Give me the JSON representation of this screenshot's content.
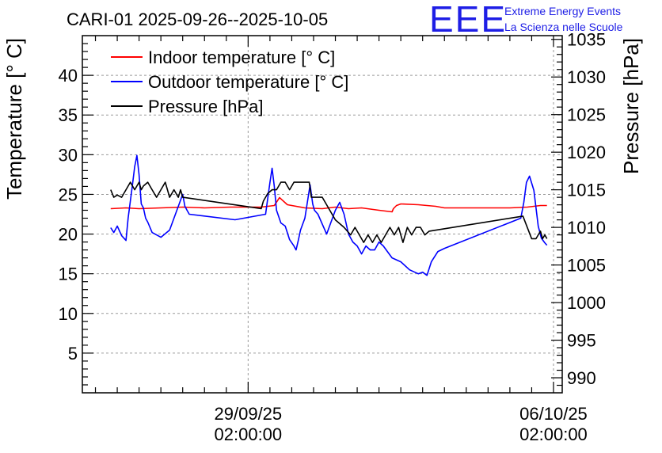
{
  "chart_data": {
    "type": "line",
    "title": "CARI-01 2025-09-26--2025-10-05",
    "logo": {
      "text": "EEE",
      "line1": "Extreme Energy Events",
      "line2": "La Scienza nelle Scuole"
    },
    "ylabel": "Temperature [° C]",
    "y2label": "Pressure [hPa]",
    "ylim": [
      0,
      45
    ],
    "y2lim": [
      988,
      1035.5
    ],
    "xlim": [
      -3.8,
      7.2
    ],
    "x_unit": "days since 29/09/25 02:00:00",
    "yticks": [
      5,
      10,
      15,
      20,
      25,
      30,
      35,
      40
    ],
    "y2ticks": [
      990,
      995,
      1000,
      1005,
      1010,
      1015,
      1020,
      1025,
      1030,
      1035
    ],
    "x_ticks": [
      {
        "x": 0,
        "date": "29/09/25",
        "time": "02:00:00"
      },
      {
        "x": 7,
        "date": "06/10/25",
        "time": "02:00:00"
      }
    ],
    "grid": true,
    "legend_position": "top-left",
    "series": [
      {
        "name": "Indoor temperature [° C]",
        "color": "#ff0000",
        "axis": "left",
        "x": [
          -3.15,
          -2.8,
          -2.5,
          -2.0,
          -1.5,
          -1.0,
          -0.4,
          0.3,
          0.6,
          0.72,
          0.9,
          1.3,
          1.7,
          2.0,
          2.3,
          2.6,
          3.0,
          3.3,
          3.33,
          3.4,
          3.5,
          3.9,
          4.3,
          4.5,
          5.0,
          5.5,
          6.0,
          6.4,
          6.7,
          6.85
        ],
        "y": [
          23.2,
          23.3,
          23.2,
          23.3,
          23.4,
          23.3,
          23.4,
          23.4,
          23.6,
          24.6,
          23.7,
          23.3,
          23.2,
          23.4,
          23.2,
          23.3,
          23.0,
          22.8,
          23.2,
          23.6,
          23.8,
          23.7,
          23.5,
          23.3,
          23.3,
          23.3,
          23.3,
          23.4,
          23.6,
          23.6
        ]
      },
      {
        "name": "Outdoor temperature [° C]",
        "color": "#0000ff",
        "axis": "left",
        "x": [
          -3.15,
          -3.08,
          -3.0,
          -2.9,
          -2.8,
          -2.75,
          -2.65,
          -2.6,
          -2.55,
          -2.5,
          -2.45,
          -2.4,
          -2.35,
          -2.3,
          -2.2,
          -2.0,
          -1.8,
          -1.6,
          -1.5,
          -1.45,
          -1.4,
          -1.35,
          -0.3,
          0.4,
          0.45,
          0.5,
          0.55,
          0.6,
          0.65,
          0.75,
          0.85,
          0.95,
          1.05,
          1.1,
          1.15,
          1.2,
          1.3,
          1.42,
          1.48,
          1.52,
          1.6,
          1.8,
          1.9,
          2.0,
          2.1,
          2.2,
          2.3,
          2.4,
          2.5,
          2.6,
          2.7,
          2.8,
          2.9,
          3.0,
          3.1,
          3.3,
          3.5,
          3.7,
          3.9,
          4.0,
          4.1,
          4.2,
          4.35,
          4.5,
          6.25,
          6.32,
          6.38,
          6.45,
          6.55,
          6.65,
          6.72,
          6.8,
          6.85
        ],
        "y": [
          20.8,
          20.2,
          21.0,
          19.8,
          19.2,
          22.0,
          26.3,
          28.5,
          29.9,
          27.5,
          23.8,
          23.3,
          22.0,
          21.5,
          20.2,
          19.6,
          20.5,
          23.5,
          25.0,
          23.5,
          23.0,
          22.5,
          21.8,
          22.5,
          24.5,
          26.5,
          28.3,
          26.0,
          23.0,
          21.4,
          21.0,
          19.3,
          18.5,
          18.0,
          19.2,
          20.5,
          22.0,
          26.2,
          23.8,
          23.0,
          22.5,
          20.0,
          21.5,
          23.0,
          24.0,
          22.5,
          20.0,
          19.0,
          18.5,
          17.5,
          18.5,
          18.0,
          18.0,
          19.0,
          18.5,
          17.0,
          16.5,
          15.5,
          15.0,
          15.2,
          14.8,
          16.5,
          17.8,
          18.2,
          22.0,
          24.0,
          26.5,
          27.3,
          25.5,
          21.0,
          19.5,
          18.9,
          18.6
        ]
      },
      {
        "name": "Pressure [hPa]",
        "color": "#000000",
        "axis": "right",
        "x": [
          -3.15,
          -3.08,
          -3.0,
          -2.9,
          -2.8,
          -2.7,
          -2.6,
          -2.5,
          -2.45,
          -2.4,
          -2.3,
          -2.2,
          -2.1,
          -2.0,
          -1.9,
          -1.8,
          -1.7,
          -1.6,
          -1.55,
          -1.5,
          0.3,
          0.35,
          0.45,
          0.55,
          0.65,
          0.75,
          0.85,
          0.95,
          1.05,
          1.15,
          1.25,
          1.4,
          1.45,
          1.55,
          1.7,
          1.8,
          2.0,
          2.2,
          2.35,
          2.45,
          2.55,
          2.65,
          2.75,
          2.85,
          2.95,
          3.05,
          3.15,
          3.25,
          3.35,
          3.45,
          3.55,
          3.65,
          3.75,
          3.85,
          3.95,
          4.05,
          4.15,
          6.3,
          6.5,
          6.6,
          6.7,
          6.75,
          6.8,
          6.85
        ],
        "y": [
          1015.0,
          1014.0,
          1014.3,
          1014.0,
          1015.0,
          1016.0,
          1015.0,
          1016.0,
          1015.0,
          1015.5,
          1016.0,
          1015.0,
          1014.0,
          1015.0,
          1016.0,
          1014.0,
          1015.0,
          1014.0,
          1015.0,
          1014.0,
          1012.5,
          1013.5,
          1014.5,
          1015.0,
          1015.0,
          1016.0,
          1016.0,
          1015.0,
          1016.0,
          1016.0,
          1016.0,
          1016.0,
          1014.0,
          1014.0,
          1014.0,
          1013.0,
          1011.0,
          1010.0,
          1009.0,
          1010.0,
          1009.0,
          1008.0,
          1009.0,
          1008.0,
          1009.0,
          1008.0,
          1009.0,
          1010.0,
          1009.0,
          1010.0,
          1008.0,
          1010.0,
          1009.0,
          1010.0,
          1010.0,
          1009.0,
          1009.5,
          1011.5,
          1008.5,
          1008.5,
          1009.5,
          1008.5,
          1009.0,
          1008.5
        ]
      }
    ]
  }
}
